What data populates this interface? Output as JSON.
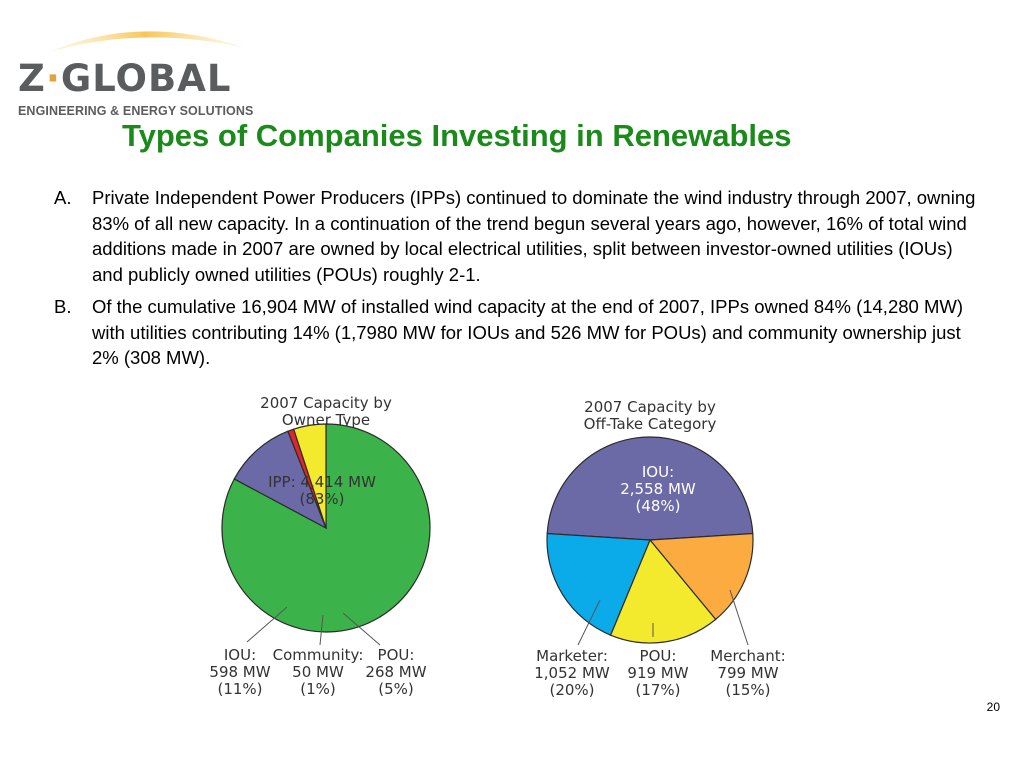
{
  "logo": {
    "name_left": "Z",
    "name_dot": "·",
    "name_right": "GLOBAL",
    "tagline": "ENGINEERING & ENERGY SOLUTIONS"
  },
  "title": "Types of Companies Investing in Renewables",
  "points": [
    {
      "marker": "A.",
      "text": "Private Independent Power Producers (IPPs) continued to dominate the wind industry through 2007, owning 83% of all new capacity. In a continuation of the trend begun several years ago, however, 16% of total wind additions made in 2007 are owned by local electrical utilities, split between investor-owned utilities (IOUs) and publicly owned utilities (POUs) roughly 2-1."
    },
    {
      "marker": "B.",
      "text": "Of the cumulative 16,904 MW of installed wind capacity at the end of 2007, IPPs owned 84% (14,280 MW) with utilities contributing 14% (1,7980 MW for IOUs and 526 MW for POUs) and community ownership just 2% (308 MW)."
    }
  ],
  "chart_data": [
    {
      "type": "pie",
      "title": [
        "2007 Capacity by",
        "Owner Type"
      ],
      "slices": [
        {
          "name": "IPP",
          "value": 4414,
          "lines": [
            "IPP: 4,414 MW",
            "(83%)"
          ],
          "color": "#3cb34a"
        },
        {
          "name": "IOU",
          "value": 598,
          "lines": [
            "IOU:",
            "598 MW",
            "(11%)"
          ],
          "color": "#6b6aa6"
        },
        {
          "name": "Community",
          "value": 50,
          "lines": [
            "Community:",
            "50 MW",
            "(1%)"
          ],
          "color": "#e0262a"
        },
        {
          "name": "POU",
          "value": 268,
          "lines": [
            "POU:",
            "268 MW",
            "(5%)"
          ],
          "color": "#f3ea2e"
        }
      ]
    },
    {
      "type": "pie",
      "title": [
        "2007 Capacity by",
        "Off-Take Category"
      ],
      "slices": [
        {
          "name": "IOU",
          "value": 2558,
          "lines": [
            "IOU:",
            "2,558 MW",
            "(48%)"
          ],
          "color": "#6b6aa6"
        },
        {
          "name": "Merchant",
          "value": 799,
          "lines": [
            "Merchant:",
            "799 MW",
            "(15%)"
          ],
          "color": "#fbab3f"
        },
        {
          "name": "POU",
          "value": 919,
          "lines": [
            "POU:",
            "919 MW",
            "(17%)"
          ],
          "color": "#f3ea2e"
        },
        {
          "name": "Marketer",
          "value": 1052,
          "lines": [
            "Marketer:",
            "1,052 MW",
            "(20%)"
          ],
          "color": "#0aabe8"
        }
      ]
    }
  ],
  "page_number": "20"
}
